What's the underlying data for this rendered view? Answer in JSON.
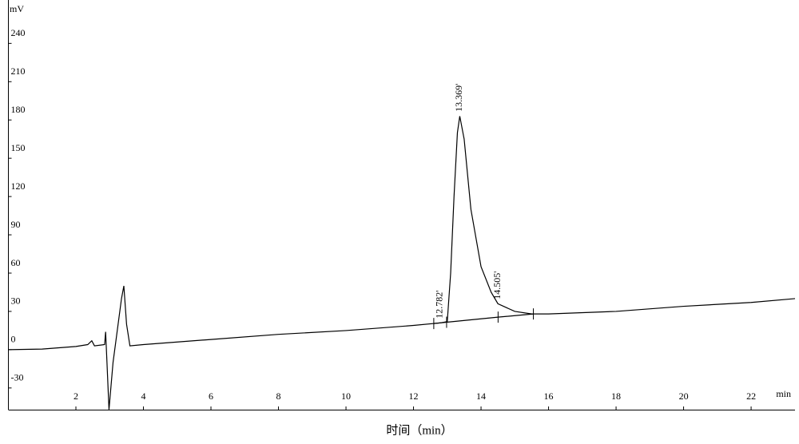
{
  "chart_data": {
    "type": "line",
    "ylabel": "mV",
    "xlabel_unit": "min",
    "xlabel": "时间（min）",
    "xlim": [
      0,
      23.3
    ],
    "ylim": [
      -47,
      274
    ],
    "xticks": [
      2,
      4,
      6,
      8,
      10,
      12,
      14,
      16,
      18,
      20,
      22
    ],
    "yticks": [
      -30,
      0,
      30,
      60,
      90,
      120,
      150,
      180,
      210,
      240
    ],
    "grid": false,
    "series": [
      {
        "color": "#000000",
        "x": [
          0,
          1,
          2,
          2.35,
          2.47,
          2.55,
          2.85,
          2.88,
          2.92,
          2.98,
          3.1,
          3.2,
          3.35,
          3.42,
          3.5,
          3.6,
          4,
          6,
          8,
          10,
          12,
          12.8,
          13.0,
          13.1,
          13.2,
          13.3,
          13.37,
          13.5,
          13.7,
          14,
          14.3,
          14.5,
          15,
          15.5,
          16,
          18,
          20,
          22,
          23.3
        ],
        "values": [
          0,
          0.5,
          2.5,
          4,
          7,
          3,
          4,
          14,
          -10,
          -47,
          -10,
          10,
          40,
          50,
          20,
          3,
          4,
          8,
          12,
          15,
          19,
          21,
          22,
          60,
          120,
          170,
          183,
          165,
          110,
          65,
          45,
          36,
          30,
          28,
          28,
          30,
          34,
          37,
          40
        ]
      },
      {
        "color": "#000000",
        "x": [
          12.6,
          12.98,
          14.505,
          15.55
        ],
        "values": [
          20.5,
          21.5,
          25.5,
          28
        ]
      }
    ],
    "annotations": [
      {
        "x": 12.782,
        "y": 22,
        "label": "12.782'"
      },
      {
        "x": 13.369,
        "y": 184,
        "label": "13.369'"
      },
      {
        "x": 14.505,
        "y": 37,
        "label": "14.505'"
      }
    ]
  }
}
